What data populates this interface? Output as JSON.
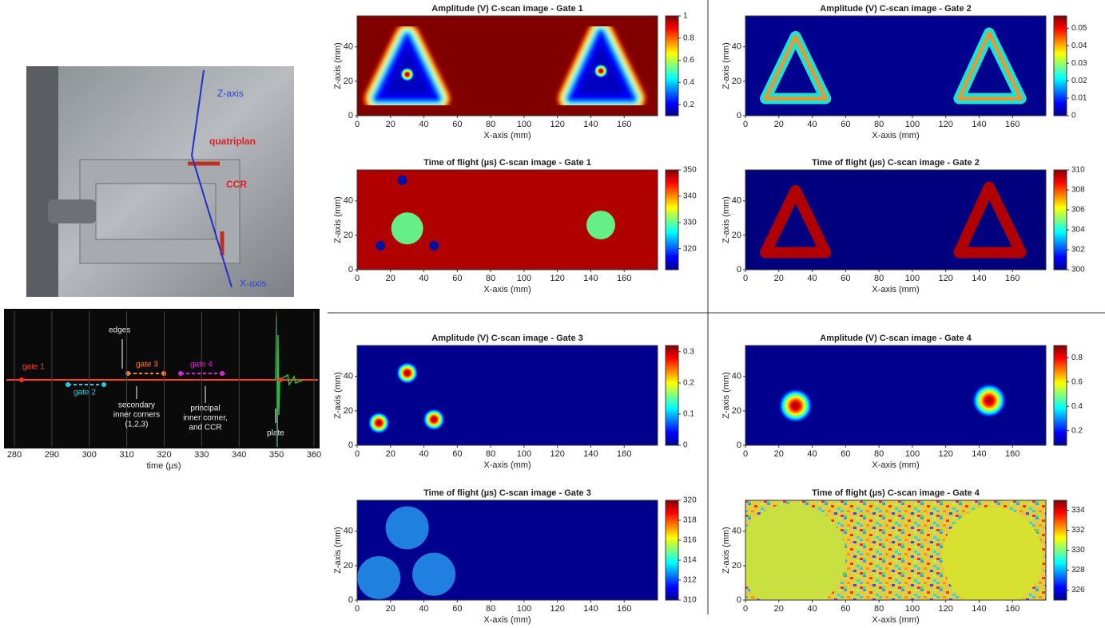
{
  "photo": {
    "z_axis": "Z-axis",
    "quatriplan": "quatriplan",
    "ccr": "CCR",
    "x_axis": "X-axis"
  },
  "signal": {
    "xticks": [
      280,
      290,
      300,
      310,
      320,
      330,
      340,
      350,
      360
    ],
    "xlim": [
      280,
      360
    ],
    "xlabel": "time (µs)",
    "gate1": "gate 1",
    "gate2": "gate 2",
    "gate3": "gate 3",
    "gate4": "gate 4",
    "edges": "edges",
    "secondary": [
      "secondary",
      "inner corners",
      "(1,2,3)"
    ],
    "principal": [
      "principal",
      "inner corner,",
      "and CCR"
    ],
    "plate": "plate"
  },
  "panels": [
    {
      "title": "Amplitude (V) C-scan image - Gate 1",
      "xlabel": "X-axis (mm)",
      "ylabel": "Z-axis (mm)",
      "xticks": [
        0,
        20,
        40,
        60,
        80,
        100,
        120,
        140,
        160
      ],
      "yticks": [
        0,
        20,
        40
      ],
      "xlim": [
        0,
        180
      ],
      "ylim": [
        0,
        58
      ],
      "cticks": [
        0.2,
        0.4,
        0.6,
        0.8,
        1
      ],
      "clim": [
        0.1,
        1
      ]
    },
    {
      "title": "Amplitude (V) C-scan image - Gate 2",
      "xlabel": "X-axis (mm)",
      "ylabel": "Z-axis (mm)",
      "xticks": [
        0,
        20,
        40,
        60,
        80,
        100,
        120,
        140,
        160
      ],
      "yticks": [
        0,
        20,
        40
      ],
      "xlim": [
        0,
        180
      ],
      "ylim": [
        0,
        58
      ],
      "cticks": [
        0,
        0.01,
        0.02,
        0.03,
        0.04,
        0.05
      ],
      "clim": [
        0,
        0.057
      ]
    },
    {
      "title": "Time of flight (µs) C-scan image - Gate 1",
      "xlabel": "X-axis (mm)",
      "ylabel": "Z-axis (mm)",
      "xticks": [
        0,
        20,
        40,
        60,
        80,
        100,
        120,
        140,
        160
      ],
      "yticks": [
        0,
        20,
        40
      ],
      "xlim": [
        0,
        180
      ],
      "ylim": [
        0,
        58
      ],
      "cticks": [
        320,
        330,
        340,
        350
      ],
      "clim": [
        312,
        350
      ]
    },
    {
      "title": "Time of flight (µs) C-scan image - Gate 2",
      "xlabel": "X-axis (mm)",
      "ylabel": "Z-axis (mm)",
      "xticks": [
        0,
        20,
        40,
        60,
        80,
        100,
        120,
        140,
        160
      ],
      "yticks": [
        0,
        20,
        40
      ],
      "xlim": [
        0,
        180
      ],
      "ylim": [
        0,
        58
      ],
      "cticks": [
        300,
        302,
        304,
        306,
        308,
        310
      ],
      "clim": [
        300,
        310
      ]
    },
    {
      "title": "Amplitude (V) C-scan image - Gate 3",
      "xlabel": "X-axis (mm)",
      "ylabel": "Z-axis (mm)",
      "xticks": [
        0,
        20,
        40,
        60,
        80,
        100,
        120,
        140,
        160
      ],
      "yticks": [
        0,
        20,
        40
      ],
      "xlim": [
        0,
        180
      ],
      "ylim": [
        0,
        58
      ],
      "cticks": [
        0,
        0.1,
        0.2,
        0.3
      ],
      "clim": [
        0,
        0.32
      ]
    },
    {
      "title": "Amplitude (V) C-scan image - Gate 4",
      "xlabel": "X-axis (mm)",
      "ylabel": "Z-axis (mm)",
      "xticks": [
        0,
        20,
        40,
        60,
        80,
        100,
        120,
        140,
        160
      ],
      "yticks": [
        0,
        20,
        40
      ],
      "xlim": [
        0,
        180
      ],
      "ylim": [
        0,
        58
      ],
      "cticks": [
        0.2,
        0.4,
        0.6,
        0.8
      ],
      "clim": [
        0.08,
        0.9
      ]
    },
    {
      "title": "Time of flight (µs) C-scan image - Gate 3",
      "xlabel": "X-axis (mm)",
      "ylabel": "Z-axis (mm)",
      "xticks": [
        0,
        20,
        40,
        60,
        80,
        100,
        120,
        140,
        160
      ],
      "yticks": [
        0,
        20,
        40
      ],
      "xlim": [
        0,
        180
      ],
      "ylim": [
        0,
        58
      ],
      "cticks": [
        310,
        312,
        314,
        316,
        318,
        320
      ],
      "clim": [
        310,
        320
      ]
    },
    {
      "title": "Time of flight (µs) C-scan image - Gate 4",
      "xlabel": "X-axis (mm)",
      "ylabel": "Z-axis (mm)",
      "xticks": [
        0,
        20,
        40,
        60,
        80,
        100,
        120,
        140,
        160
      ],
      "yticks": [
        0,
        20,
        40
      ],
      "xlim": [
        0,
        180
      ],
      "ylim": [
        0,
        58
      ],
      "cticks": [
        326,
        328,
        330,
        332,
        334
      ],
      "clim": [
        325,
        335
      ]
    }
  ]
}
